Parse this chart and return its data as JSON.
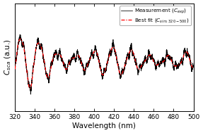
{
  "xlabel": "Wavelength (nm)",
  "ylabel": "$C_{sca}$ (a.u.)",
  "xlim": [
    320,
    500
  ],
  "xmin": 320,
  "xmax": 500,
  "legend_line1": "Measurement ($C_{exp}$)",
  "legend_line2": "Best fit ($C_{sim,320-500}$)",
  "bg_color": "#ffffff",
  "measurement_color": "#000000",
  "bestfit_color": "#ff0000",
  "tick_fontsize": 6.5,
  "label_fontsize": 7.5,
  "xticks": [
    320,
    340,
    360,
    380,
    400,
    420,
    440,
    460,
    480,
    500
  ]
}
